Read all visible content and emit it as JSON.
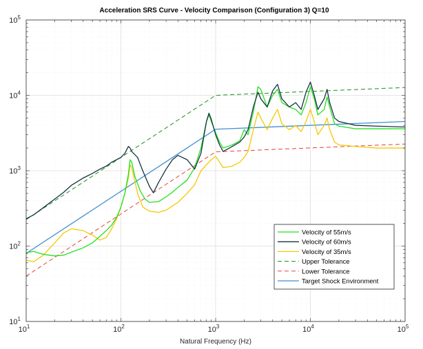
{
  "chart_data": {
    "type": "line",
    "title": "Acceleration SRS Curve - Velocity Comparison (Configuration 3) Q=10",
    "xlabel": "Natural Frequency (Hz)",
    "ylabel": "",
    "xscale": "log",
    "yscale": "log",
    "xlim": [
      10,
      100000
    ],
    "ylim": [
      10,
      100000
    ],
    "grid": true,
    "legend_position": "bottom-right",
    "x_ticks": [
      {
        "value": 10,
        "base": "10",
        "exp": "1"
      },
      {
        "value": 100,
        "base": "10",
        "exp": "2"
      },
      {
        "value": 1000,
        "base": "10",
        "exp": "3"
      },
      {
        "value": 10000,
        "base": "10",
        "exp": "4"
      },
      {
        "value": 100000,
        "base": "10",
        "exp": "5"
      }
    ],
    "y_ticks": [
      {
        "value": 10,
        "base": "10",
        "exp": "1"
      },
      {
        "value": 100,
        "base": "10",
        "exp": "2"
      },
      {
        "value": 1000,
        "base": "10",
        "exp": "3"
      },
      {
        "value": 10000,
        "base": "10",
        "exp": "4"
      },
      {
        "value": 100000,
        "base": "10",
        "exp": "5"
      }
    ],
    "series": [
      {
        "name": "Velocity of 55m/s",
        "color": "#22e022",
        "dash": "solid",
        "points": [
          [
            10,
            82
          ],
          [
            12,
            85
          ],
          [
            15,
            78
          ],
          [
            20,
            74
          ],
          [
            25,
            76
          ],
          [
            30,
            83
          ],
          [
            40,
            95
          ],
          [
            50,
            110
          ],
          [
            60,
            135
          ],
          [
            70,
            160
          ],
          [
            80,
            190
          ],
          [
            90,
            240
          ],
          [
            100,
            330
          ],
          [
            110,
            500
          ],
          [
            120,
            900
          ],
          [
            125,
            1400
          ],
          [
            130,
            1300
          ],
          [
            140,
            850
          ],
          [
            160,
            540
          ],
          [
            180,
            420
          ],
          [
            200,
            380
          ],
          [
            250,
            390
          ],
          [
            300,
            450
          ],
          [
            350,
            520
          ],
          [
            400,
            600
          ],
          [
            500,
            750
          ],
          [
            600,
            1100
          ],
          [
            700,
            2000
          ],
          [
            800,
            4500
          ],
          [
            850,
            5500
          ],
          [
            900,
            4500
          ],
          [
            1000,
            3200
          ],
          [
            1100,
            2400
          ],
          [
            1200,
            2000
          ],
          [
            1500,
            2200
          ],
          [
            1800,
            2500
          ],
          [
            2000,
            3500
          ],
          [
            2200,
            3000
          ],
          [
            2500,
            6000
          ],
          [
            2800,
            13000
          ],
          [
            3000,
            12000
          ],
          [
            3500,
            7000
          ],
          [
            4000,
            10000
          ],
          [
            4500,
            12000
          ],
          [
            5000,
            8000
          ],
          [
            6000,
            7000
          ],
          [
            7000,
            6500
          ],
          [
            8000,
            5500
          ],
          [
            9000,
            8000
          ],
          [
            10000,
            13000
          ],
          [
            11000,
            9000
          ],
          [
            12000,
            5500
          ],
          [
            14000,
            6500
          ],
          [
            15000,
            9500
          ],
          [
            16000,
            7000
          ],
          [
            18000,
            4200
          ],
          [
            20000,
            3900
          ],
          [
            30000,
            3600
          ],
          [
            50000,
            3600
          ],
          [
            100000,
            3600
          ]
        ]
      },
      {
        "name": "Velocity of 60m/s",
        "color": "#15333f",
        "dash": "solid",
        "points": [
          [
            10,
            230
          ],
          [
            12,
            260
          ],
          [
            15,
            320
          ],
          [
            20,
            420
          ],
          [
            25,
            520
          ],
          [
            30,
            640
          ],
          [
            40,
            800
          ],
          [
            50,
            920
          ],
          [
            60,
            1050
          ],
          [
            70,
            1150
          ],
          [
            80,
            1300
          ],
          [
            90,
            1400
          ],
          [
            100,
            1500
          ],
          [
            110,
            1700
          ],
          [
            120,
            2100
          ],
          [
            125,
            2000
          ],
          [
            130,
            1800
          ],
          [
            150,
            1500
          ],
          [
            170,
            1000
          ],
          [
            200,
            620
          ],
          [
            220,
            510
          ],
          [
            250,
            700
          ],
          [
            300,
            1050
          ],
          [
            350,
            1400
          ],
          [
            400,
            1600
          ],
          [
            500,
            1400
          ],
          [
            600,
            1050
          ],
          [
            700,
            1700
          ],
          [
            800,
            4500
          ],
          [
            850,
            5800
          ],
          [
            900,
            4800
          ],
          [
            1000,
            3000
          ],
          [
            1100,
            2200
          ],
          [
            1200,
            1800
          ],
          [
            1500,
            2100
          ],
          [
            1800,
            2400
          ],
          [
            2000,
            2800
          ],
          [
            2200,
            3500
          ],
          [
            2500,
            7000
          ],
          [
            2800,
            11000
          ],
          [
            3000,
            9000
          ],
          [
            3500,
            7000
          ],
          [
            4000,
            11500
          ],
          [
            4500,
            14000
          ],
          [
            5000,
            9000
          ],
          [
            6000,
            7000
          ],
          [
            7000,
            8000
          ],
          [
            8000,
            6500
          ],
          [
            9000,
            11000
          ],
          [
            10000,
            15000
          ],
          [
            11000,
            10000
          ],
          [
            12000,
            6500
          ],
          [
            14000,
            9000
          ],
          [
            15000,
            12000
          ],
          [
            16000,
            8000
          ],
          [
            18000,
            5000
          ],
          [
            20000,
            4500
          ],
          [
            30000,
            4000
          ],
          [
            50000,
            3900
          ],
          [
            100000,
            3800
          ]
        ]
      },
      {
        "name": "Velocity of 35m/s",
        "color": "#f5c800",
        "dash": "solid",
        "points": [
          [
            10,
            65
          ],
          [
            12,
            62
          ],
          [
            15,
            75
          ],
          [
            20,
            110
          ],
          [
            25,
            150
          ],
          [
            30,
            170
          ],
          [
            40,
            160
          ],
          [
            50,
            140
          ],
          [
            60,
            120
          ],
          [
            70,
            130
          ],
          [
            80,
            170
          ],
          [
            90,
            230
          ],
          [
            100,
            330
          ],
          [
            110,
            500
          ],
          [
            120,
            800
          ],
          [
            125,
            1200
          ],
          [
            130,
            1100
          ],
          [
            150,
            500
          ],
          [
            170,
            330
          ],
          [
            200,
            290
          ],
          [
            250,
            280
          ],
          [
            300,
            300
          ],
          [
            400,
            380
          ],
          [
            500,
            500
          ],
          [
            600,
            650
          ],
          [
            700,
            1000
          ],
          [
            800,
            1200
          ],
          [
            900,
            1400
          ],
          [
            1000,
            1550
          ],
          [
            1100,
            1300
          ],
          [
            1200,
            1100
          ],
          [
            1500,
            1150
          ],
          [
            1800,
            1300
          ],
          [
            2000,
            1500
          ],
          [
            2200,
            1800
          ],
          [
            2500,
            3500
          ],
          [
            2800,
            6000
          ],
          [
            3000,
            5000
          ],
          [
            3500,
            3500
          ],
          [
            4000,
            5000
          ],
          [
            4500,
            6500
          ],
          [
            5000,
            4200
          ],
          [
            6000,
            3500
          ],
          [
            7000,
            4000
          ],
          [
            8000,
            3300
          ],
          [
            9000,
            4500
          ],
          [
            10000,
            6500
          ],
          [
            11000,
            4500
          ],
          [
            12000,
            3000
          ],
          [
            14000,
            4000
          ],
          [
            15000,
            5000
          ],
          [
            16000,
            3500
          ],
          [
            18000,
            2400
          ],
          [
            20000,
            2200
          ],
          [
            30000,
            2100
          ],
          [
            50000,
            2000
          ],
          [
            100000,
            2000
          ]
        ]
      },
      {
        "name": "Upper Tolerance",
        "color": "#1f8a1f",
        "dash": "dashed",
        "points": [
          [
            10,
            225
          ],
          [
            1000,
            10000
          ],
          [
            100000,
            12700
          ]
        ]
      },
      {
        "name": "Lower Tolerance",
        "color": "#e8403a",
        "dash": "dashed",
        "points": [
          [
            10,
            40
          ],
          [
            1000,
            1780
          ],
          [
            100000,
            2260
          ]
        ]
      },
      {
        "name": "Target Shock Environment",
        "color": "#3f8fd2",
        "dash": "solid",
        "points": [
          [
            10,
            80
          ],
          [
            1000,
            3550
          ],
          [
            100000,
            4500
          ]
        ]
      }
    ]
  }
}
